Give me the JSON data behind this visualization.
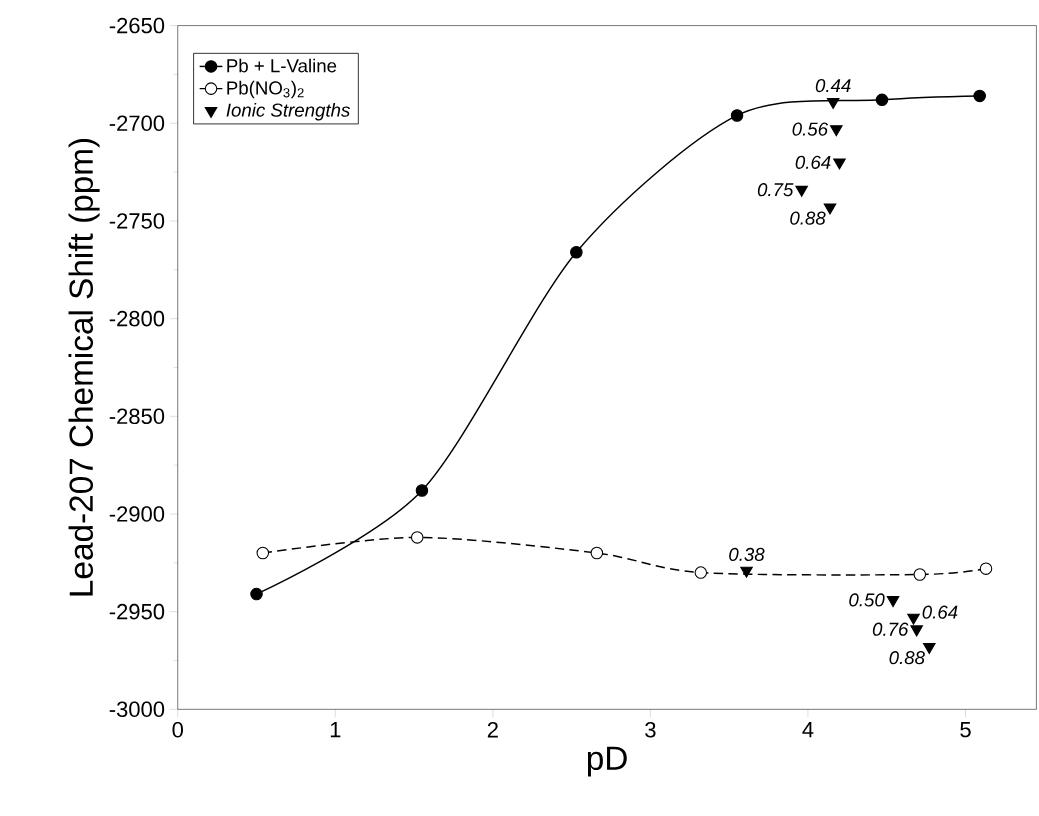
{
  "chart_data": {
    "type": "line",
    "xlabel": "pD",
    "ylabel": "Lead-207 Chemical Shift (ppm)",
    "xlim": [
      0,
      5.45
    ],
    "ylim": [
      -3000,
      -2650
    ],
    "xticks": [
      0,
      1,
      2,
      3,
      4,
      5
    ],
    "yticks": [
      -3000,
      -2950,
      -2900,
      -2850,
      -2800,
      -2750,
      -2700,
      -2650
    ],
    "legend": "top left",
    "grid": false,
    "series": [
      {
        "name": "Pb + L-Valine",
        "color": "#000000",
        "marker": "circle",
        "line_style": "solid",
        "x": [
          0.5,
          1.55,
          2.53,
          3.55,
          4.47,
          5.09
        ],
        "values": [
          -2941,
          -2888,
          -2766,
          -2696,
          -2688,
          -2686
        ]
      },
      {
        "name": "Pb(NO$_{3}$)$_{2}$",
        "color": "#000000",
        "marker": "circle",
        "line_style": "dashed",
        "x": [
          0.54,
          1.52,
          2.66,
          3.32,
          4.71,
          5.13
        ],
        "values": [
          -2920,
          -2912,
          -2920,
          -2930,
          -2931,
          -2928
        ]
      },
      {
        "name": "Ionic Strengths",
        "type": "scatter",
        "color": "#000000",
        "marker": "triangle",
        "x": [
          4.16,
          4.18,
          4.2,
          3.96,
          4.14,
          3.61,
          4.54,
          4.67,
          4.69,
          4.77
        ],
        "values": [
          -2689,
          -2703,
          -2720,
          -2734,
          -2743,
          -2929,
          -2944,
          -2953,
          -2959,
          -2968
        ]
      }
    ],
    "annotations": [
      {
        "text": "0.44",
        "x": 4.16,
        "y": -2689
      },
      {
        "text": "0.56",
        "x": 4.18,
        "y": -2703
      },
      {
        "text": "0.64",
        "x": 4.2,
        "y": -2720
      },
      {
        "text": "0.75",
        "x": 3.96,
        "y": -2734
      },
      {
        "text": "0.88",
        "x": 4.14,
        "y": -2743
      },
      {
        "text": "0.38",
        "x": 3.61,
        "y": -2929
      },
      {
        "text": "0.50",
        "x": 4.54,
        "y": -2944
      },
      {
        "text": "0.64",
        "x": 4.67,
        "y": -2953
      },
      {
        "text": "0.76",
        "x": 4.69,
        "y": -2959
      },
      {
        "text": "0.88",
        "x": 4.77,
        "y": -2968
      }
    ]
  }
}
